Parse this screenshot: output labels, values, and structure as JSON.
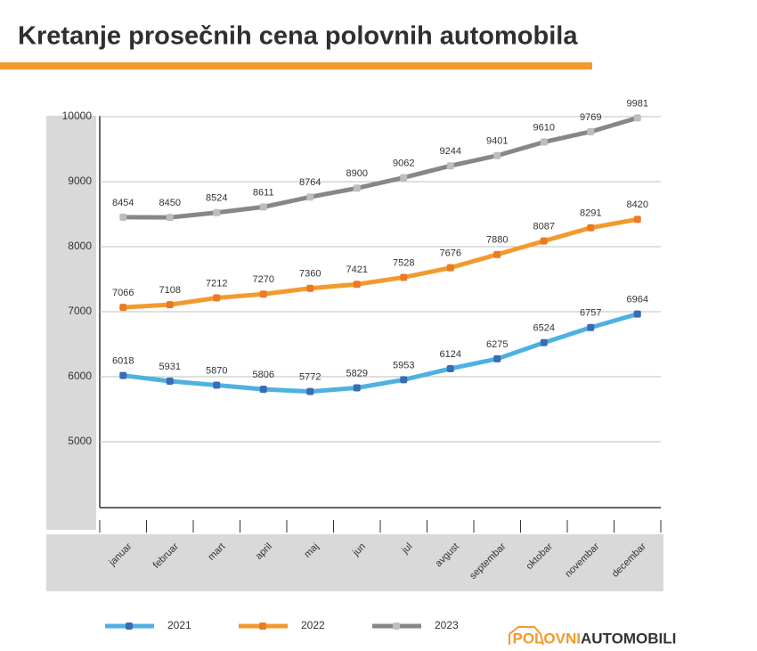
{
  "chart_data": {
    "type": "line",
    "title": "Kretanje prosečnih cena polovnih automobila",
    "categories": [
      "januar",
      "februar",
      "mart",
      "april",
      "maj",
      "jun",
      "jul",
      "avgust",
      "septembar",
      "oktobar",
      "novembar",
      "decembar"
    ],
    "series": [
      {
        "name": "2021",
        "color": "#4db1e2",
        "marker_color": "#3b6bb4",
        "values": [
          6018,
          5931,
          5870,
          5806,
          5772,
          5829,
          5953,
          6124,
          6275,
          6524,
          6757,
          6964
        ]
      },
      {
        "name": "2022",
        "color": "#f29a2e",
        "marker_color": "#ea7a24",
        "values": [
          7066,
          7108,
          7212,
          7270,
          7360,
          7421,
          7528,
          7676,
          7880,
          8087,
          8291,
          8420
        ]
      },
      {
        "name": "2023",
        "color": "#878787",
        "marker_color": "#bdbdbd",
        "values": [
          8454,
          8450,
          8524,
          8611,
          8764,
          8900,
          9062,
          9244,
          9401,
          9610,
          9769,
          9981
        ]
      }
    ],
    "ylim": [
      4000,
      10000
    ],
    "yticks": [
      5000,
      6000,
      7000,
      8000,
      9000,
      10000
    ],
    "grid": true,
    "legend": "bottom"
  },
  "logo": {
    "part1": "POLOVNI",
    "part2": "AUTOMOBILI"
  }
}
